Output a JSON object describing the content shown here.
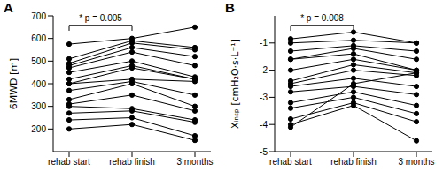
{
  "chart_data": [
    {
      "type": "line",
      "panel": "A",
      "y_label": "6MWD [m]",
      "categories": [
        "rehab start",
        "rehab finish",
        "3 months"
      ],
      "color": "#000000",
      "marker": "circle",
      "grid": false,
      "ylim": [
        100,
        700
      ],
      "yticks": [
        200,
        300,
        400,
        500,
        600,
        700
      ],
      "annotations": [
        {
          "text": "* p = 0.005",
          "from": "rehab start",
          "to": "rehab finish"
        }
      ],
      "series": [
        {
          "values": [
            575,
            600,
            650
          ]
        },
        {
          "values": [
            510,
            590,
            560
          ]
        },
        {
          "values": [
            490,
            580,
            550
          ]
        },
        {
          "values": [
            480,
            560,
            520
          ]
        },
        {
          "values": [
            470,
            540,
            480
          ]
        },
        {
          "values": [
            450,
            500,
            430
          ]
        },
        {
          "values": [
            420,
            480,
            420
          ]
        },
        {
          "values": [
            400,
            470,
            420
          ]
        },
        {
          "values": [
            400,
            420,
            410
          ]
        },
        {
          "values": [
            370,
            410,
            350
          ]
        },
        {
          "values": [
            330,
            400,
            300
          ]
        },
        {
          "values": [
            310,
            350,
            280
          ]
        },
        {
          "values": [
            300,
            290,
            240
          ]
        },
        {
          "values": [
            270,
            280,
            230
          ]
        },
        {
          "values": [
            240,
            250,
            170
          ]
        },
        {
          "values": [
            200,
            220,
            150
          ]
        }
      ]
    },
    {
      "type": "line",
      "panel": "B",
      "y_label": "Xᵢₙₛₚ [cmH₂O·s·L⁻¹]",
      "categories": [
        "rehab start",
        "rehab finish",
        "3 months"
      ],
      "color": "#000000",
      "marker": "circle",
      "grid": false,
      "ylim": [
        -5,
        0
      ],
      "yticks": [
        -5,
        -4,
        -3,
        -2,
        -1
      ],
      "annotations": [
        {
          "text": "* p = 0.008",
          "from": "rehab start",
          "to": "rehab finish"
        }
      ],
      "series": [
        {
          "values": [
            -0.85,
            -0.6,
            -1.0
          ]
        },
        {
          "values": [
            -1.0,
            -0.9,
            -1.0
          ]
        },
        {
          "values": [
            -1.3,
            -1.1,
            -1.3
          ]
        },
        {
          "values": [
            -1.6,
            -1.2,
            -1.6
          ]
        },
        {
          "values": [
            -1.6,
            -1.4,
            -2.0
          ]
        },
        {
          "values": [
            -2.0,
            -1.6,
            -2.0
          ]
        },
        {
          "values": [
            -2.4,
            -1.8,
            -2.1
          ]
        },
        {
          "values": [
            -2.5,
            -2.0,
            -2.2
          ]
        },
        {
          "values": [
            -2.6,
            -2.3,
            -2.6
          ]
        },
        {
          "values": [
            -2.8,
            -2.6,
            -2.9
          ]
        },
        {
          "values": [
            -3.2,
            -2.8,
            -3.3
          ]
        },
        {
          "values": [
            -3.4,
            -3.0,
            -3.6
          ]
        },
        {
          "values": [
            -3.8,
            -3.2,
            -3.9
          ]
        },
        {
          "values": [
            -4.0,
            -3.3,
            -4.6
          ]
        },
        {
          "values": [
            -4.1,
            -2.5,
            -2.1
          ]
        }
      ]
    }
  ]
}
